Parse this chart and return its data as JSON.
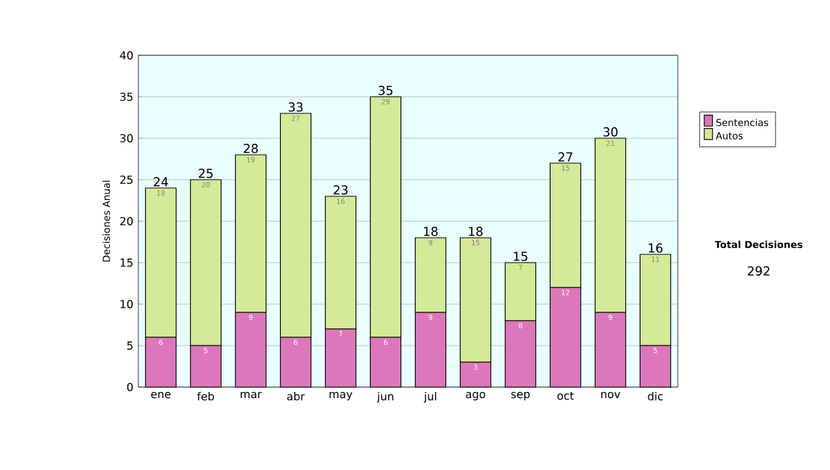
{
  "chart_data": {
    "type": "bar",
    "stacked": true,
    "ylabel": "Decisiones Anual",
    "categories": [
      "ene",
      "feb",
      "mar",
      "abr",
      "may",
      "jun",
      "jul",
      "ago",
      "sep",
      "oct",
      "nov",
      "dic"
    ],
    "series": [
      {
        "name": "Sentencias",
        "color": "#dd77bb",
        "values": [
          6,
          5,
          9,
          6,
          7,
          6,
          9,
          3,
          8,
          12,
          9,
          5
        ]
      },
      {
        "name": "Autos",
        "color": "#d4ea96",
        "values": [
          18,
          20,
          19,
          27,
          16,
          29,
          9,
          15,
          7,
          15,
          21,
          11
        ]
      }
    ],
    "totals": [
      "24",
      "25",
      "28",
      "33",
      "23",
      "35",
      "18",
      "18",
      "15",
      "27",
      "30",
      "16"
    ],
    "data_labels": true,
    "ylim": [
      0,
      40
    ],
    "yticks": [
      0,
      5,
      10,
      15,
      20,
      25,
      30,
      35,
      40
    ],
    "grid": "y",
    "legend": "right",
    "annotations": [
      "Total Decisiones",
      "292"
    ]
  }
}
